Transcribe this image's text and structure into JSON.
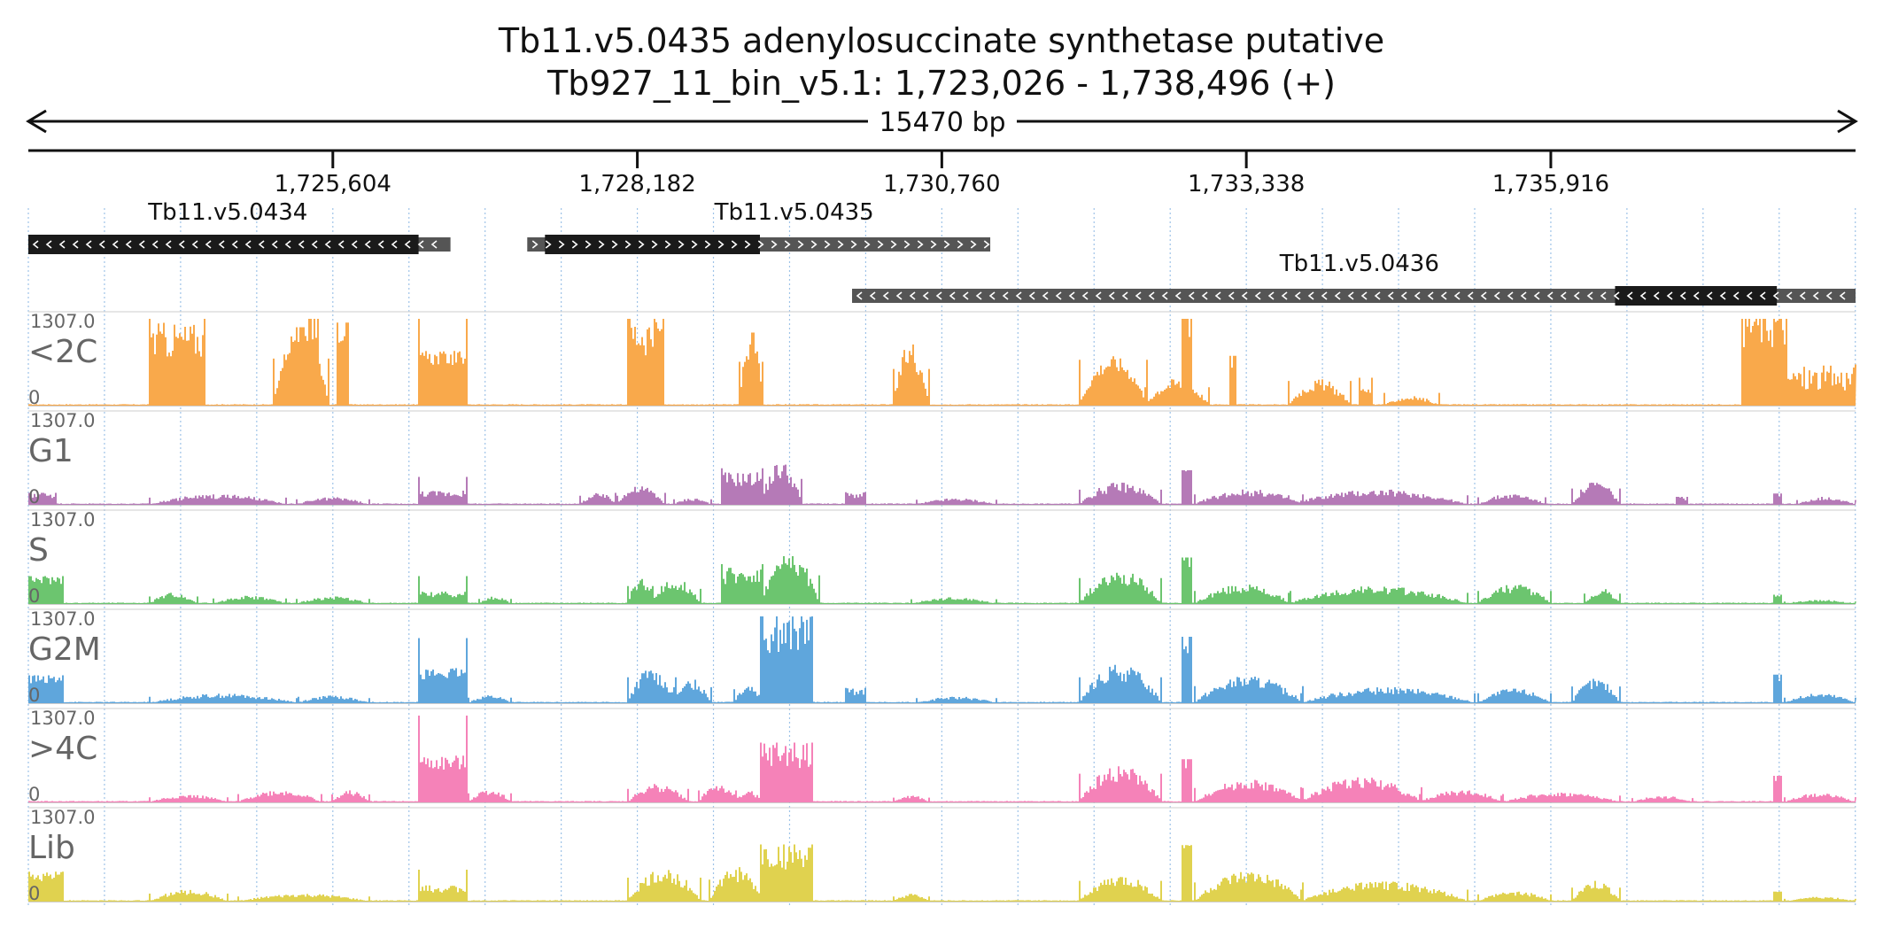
{
  "title": "Tb11.v5.0435  adenylosuccinate synthetase  putative",
  "subtitle": "Tb927_11_bin_v5.1: 1,723,026 - 1,738,496 (+)",
  "region": {
    "chrom": "Tb927_11_bin_v5.1",
    "start": 1723026,
    "end": 1738496,
    "strand": "+"
  },
  "span_label": "15470 bp",
  "colors": {
    "gene_cds": "#1a1a1a",
    "gene_utr": "#555555",
    "gridline": "#9ec3e8",
    "axis": "#111111"
  },
  "chart_data": {
    "type": "area",
    "x_ticks": [
      1725604,
      1728182,
      1730760,
      1733338,
      1735916
    ],
    "x_tick_labels": [
      "1,725,604",
      "1,728,182",
      "1,730,760",
      "1,733,338",
      "1,735,916"
    ],
    "genes": [
      {
        "name": "Tb11.v5.0434",
        "strand": "-",
        "start": 1723026,
        "end": 1726600,
        "cds_start": 1723026,
        "cds_end": 1726330
      },
      {
        "name": "Tb11.v5.0435",
        "strand": "+",
        "start": 1727250,
        "end": 1731170,
        "cds_start": 1727400,
        "cds_end": 1729220
      },
      {
        "name": "Tb11.v5.0436",
        "strand": "-",
        "start": 1730000,
        "end": 1738496,
        "cds_start": 1736460,
        "cds_end": 1737830
      }
    ],
    "ylim": [
      0,
      1307.0
    ],
    "y_max_label": "1307.0",
    "y_min_label": "0",
    "series": [
      {
        "name": "<2C",
        "color": "#f9a94b",
        "max": 1307.0,
        "peaks": [
          [
            1724050,
            1724500,
            1307,
            0.28,
            0.75,
            "flat"
          ],
          [
            1724300,
            1724400,
            850,
            0.3,
            0.6,
            "hill"
          ],
          [
            1725100,
            1725560,
            1180,
            0.15,
            0.92,
            "hill"
          ],
          [
            1725400,
            1725470,
            1307,
            0.3,
            1.0,
            "flat"
          ],
          [
            1725650,
            1725720,
            1250,
            0.3,
            1.0,
            "flat"
          ],
          [
            1726340,
            1726720,
            1307,
            0.15,
            0.55,
            "flat"
          ],
          [
            1728100,
            1728390,
            1307,
            0.3,
            0.82,
            "flat"
          ],
          [
            1729050,
            1729220,
            1100,
            0.3,
            0.9,
            "hill"
          ],
          [
            1730350,
            1730640,
            920,
            0.3,
            0.85,
            "hill"
          ],
          [
            1731920,
            1732480,
            1150,
            0.2,
            0.55,
            "hill"
          ],
          [
            1732800,
            1732860,
            1307,
            0.3,
            1.0,
            "flat"
          ],
          [
            1732480,
            1733000,
            460,
            0.3,
            0.7,
            "hill"
          ],
          [
            1733200,
            1733230,
            750,
            0.3,
            1.0,
            "flat"
          ],
          [
            1733700,
            1734200,
            620,
            0.3,
            0.5,
            "hill"
          ],
          [
            1734300,
            1734380,
            420,
            0.3,
            0.5,
            "flat"
          ],
          [
            1734500,
            1734960,
            320,
            0.3,
            0.35,
            "hill"
          ],
          [
            1737530,
            1737900,
            1307,
            0.3,
            0.95,
            "flat"
          ],
          [
            1737900,
            1738496,
            620,
            0.5,
            0.65,
            "flat"
          ]
        ]
      },
      {
        "name": "G1",
        "color": "#b57ab7",
        "max": 1307.0,
        "peaks": [
          [
            1723026,
            1723250,
            180,
            0.3,
            0.8,
            "flat"
          ],
          [
            1724050,
            1725200,
            180,
            0.3,
            0.7,
            "hill"
          ],
          [
            1725300,
            1725900,
            140,
            0.3,
            0.65,
            "hill"
          ],
          [
            1726340,
            1726720,
            420,
            0.3,
            0.4,
            "flat"
          ],
          [
            1727700,
            1728000,
            230,
            0.3,
            0.6,
            "hill"
          ],
          [
            1728000,
            1728400,
            300,
            0.3,
            0.75,
            "hill"
          ],
          [
            1728500,
            1728800,
            140,
            0.3,
            0.6,
            "hill"
          ],
          [
            1728900,
            1729220,
            550,
            0.3,
            0.7,
            "flat"
          ],
          [
            1729220,
            1729550,
            650,
            0.3,
            0.8,
            "hill"
          ],
          [
            1729950,
            1730100,
            190,
            0.3,
            0.75,
            "flat"
          ],
          [
            1730550,
            1731200,
            130,
            0.3,
            0.6,
            "hill"
          ],
          [
            1731920,
            1732600,
            380,
            0.3,
            0.7,
            "hill"
          ],
          [
            1732800,
            1732860,
            520,
            0.3,
            1.0,
            "flat"
          ],
          [
            1732900,
            1733800,
            260,
            0.3,
            0.7,
            "hill"
          ],
          [
            1733700,
            1735200,
            240,
            0.3,
            0.75,
            "hill"
          ],
          [
            1735300,
            1735850,
            190,
            0.3,
            0.7,
            "hill"
          ],
          [
            1736100,
            1736480,
            410,
            0.3,
            0.7,
            "hill"
          ],
          [
            1736980,
            1737060,
            120,
            0.3,
            0.8,
            "flat"
          ],
          [
            1737800,
            1737850,
            170,
            0.3,
            1.0,
            "flat"
          ],
          [
            1738000,
            1738496,
            120,
            0.3,
            0.8,
            "hill"
          ]
        ]
      },
      {
        "name": "S",
        "color": "#6cc56f",
        "max": 1307.0,
        "peaks": [
          [
            1723026,
            1723300,
            420,
            0.2,
            0.85,
            "flat"
          ],
          [
            1724050,
            1724450,
            190,
            0.3,
            0.7,
            "hill"
          ],
          [
            1724600,
            1725200,
            140,
            0.3,
            0.7,
            "hill"
          ],
          [
            1725300,
            1725900,
            130,
            0.3,
            0.7,
            "hill"
          ],
          [
            1726340,
            1726720,
            420,
            0.3,
            0.35,
            "flat"
          ],
          [
            1726850,
            1727100,
            130,
            0.3,
            0.7,
            "hill"
          ],
          [
            1728100,
            1728300,
            450,
            0.3,
            0.7,
            "hill"
          ],
          [
            1728300,
            1728700,
            380,
            0.3,
            0.8,
            "hill"
          ],
          [
            1728900,
            1729220,
            600,
            0.3,
            0.7,
            "flat"
          ],
          [
            1729220,
            1729700,
            720,
            0.3,
            0.85,
            "hill"
          ],
          [
            1730500,
            1731200,
            120,
            0.3,
            0.65,
            "hill"
          ],
          [
            1731920,
            1732600,
            650,
            0.3,
            0.6,
            "hill"
          ],
          [
            1732800,
            1732860,
            700,
            0.3,
            1.0,
            "flat"
          ],
          [
            1732900,
            1733700,
            330,
            0.3,
            0.7,
            "hill"
          ],
          [
            1733700,
            1735200,
            280,
            0.3,
            0.75,
            "hill"
          ],
          [
            1735300,
            1735900,
            330,
            0.3,
            0.7,
            "hill"
          ],
          [
            1736200,
            1736480,
            260,
            0.3,
            0.7,
            "hill"
          ],
          [
            1737800,
            1737850,
            140,
            0.3,
            1.0,
            "flat"
          ],
          [
            1737900,
            1738496,
            60,
            0.3,
            0.85,
            "hill"
          ]
        ]
      },
      {
        "name": "G2M",
        "color": "#5fa6dc",
        "max": 1307.0,
        "peaks": [
          [
            1723026,
            1723300,
            420,
            0.2,
            0.85,
            "flat"
          ],
          [
            1724050,
            1725300,
            160,
            0.3,
            0.7,
            "hill"
          ],
          [
            1725300,
            1725900,
            130,
            0.3,
            0.7,
            "hill"
          ],
          [
            1726340,
            1726720,
            980,
            0.2,
            0.45,
            "flat"
          ],
          [
            1726750,
            1727100,
            140,
            0.3,
            0.7,
            "hill"
          ],
          [
            1728100,
            1728500,
            650,
            0.3,
            0.65,
            "hill"
          ],
          [
            1728500,
            1728800,
            400,
            0.3,
            0.7,
            "hill"
          ],
          [
            1729000,
            1729220,
            350,
            0.3,
            0.7,
            "hill"
          ],
          [
            1729220,
            1729650,
            1307,
            0.3,
            0.8,
            "flat"
          ],
          [
            1729950,
            1730100,
            230,
            0.3,
            0.75,
            "flat"
          ],
          [
            1730550,
            1731200,
            130,
            0.3,
            0.6,
            "hill"
          ],
          [
            1731920,
            1732600,
            650,
            0.3,
            0.7,
            "hill"
          ],
          [
            1732800,
            1732860,
            1000,
            0.3,
            1.0,
            "flat"
          ],
          [
            1732900,
            1733800,
            430,
            0.3,
            0.75,
            "hill"
          ],
          [
            1733800,
            1735250,
            250,
            0.3,
            0.75,
            "hill"
          ],
          [
            1735300,
            1735900,
            250,
            0.3,
            0.7,
            "hill"
          ],
          [
            1736100,
            1736480,
            420,
            0.3,
            0.7,
            "hill"
          ],
          [
            1737800,
            1737850,
            430,
            0.3,
            1.0,
            "flat"
          ],
          [
            1737900,
            1738496,
            140,
            0.3,
            0.85,
            "hill"
          ]
        ]
      },
      {
        "name": ">4C",
        "color": "#f582b8",
        "max": 1307.0,
        "peaks": [
          [
            1724050,
            1724700,
            130,
            0.3,
            0.7,
            "hill"
          ],
          [
            1724800,
            1725500,
            210,
            0.3,
            0.7,
            "hill"
          ],
          [
            1725600,
            1725900,
            200,
            0.3,
            0.7,
            "hill"
          ],
          [
            1726340,
            1726720,
            1307,
            0.2,
            0.45,
            "flat"
          ],
          [
            1726750,
            1727100,
            230,
            0.3,
            0.7,
            "hill"
          ],
          [
            1728100,
            1728600,
            340,
            0.3,
            0.65,
            "hill"
          ],
          [
            1728700,
            1729000,
            300,
            0.3,
            0.75,
            "hill"
          ],
          [
            1729000,
            1729220,
            200,
            0.3,
            0.7,
            "hill"
          ],
          [
            1729220,
            1729650,
            900,
            0.3,
            0.8,
            "flat"
          ],
          [
            1730350,
            1730640,
            120,
            0.3,
            0.7,
            "hill"
          ],
          [
            1731920,
            1732600,
            720,
            0.3,
            0.6,
            "hill"
          ],
          [
            1732800,
            1732860,
            650,
            0.3,
            1.0,
            "flat"
          ],
          [
            1732900,
            1733800,
            360,
            0.3,
            0.75,
            "hill"
          ],
          [
            1733800,
            1734800,
            380,
            0.3,
            0.8,
            "hill"
          ],
          [
            1734800,
            1735500,
            210,
            0.3,
            0.7,
            "hill"
          ],
          [
            1735500,
            1736480,
            170,
            0.3,
            0.7,
            "hill"
          ],
          [
            1736600,
            1737100,
            110,
            0.3,
            0.7,
            "hill"
          ],
          [
            1737800,
            1737850,
            400,
            0.3,
            1.0,
            "flat"
          ],
          [
            1737900,
            1738496,
            130,
            0.3,
            0.85,
            "hill"
          ]
        ]
      },
      {
        "name": "Lib",
        "color": "#e0d24f",
        "max": 1307.0,
        "peaks": [
          [
            1723026,
            1723300,
            450,
            0.2,
            0.85,
            "flat"
          ],
          [
            1724050,
            1724700,
            200,
            0.3,
            0.7,
            "hill"
          ],
          [
            1724800,
            1725900,
            130,
            0.3,
            0.7,
            "hill"
          ],
          [
            1726340,
            1726720,
            480,
            0.3,
            0.4,
            "flat"
          ],
          [
            1728100,
            1728700,
            600,
            0.3,
            0.65,
            "hill"
          ],
          [
            1728800,
            1729220,
            550,
            0.3,
            0.75,
            "hill"
          ],
          [
            1729220,
            1729650,
            860,
            0.3,
            0.8,
            "flat"
          ],
          [
            1730350,
            1730640,
            130,
            0.3,
            0.7,
            "hill"
          ],
          [
            1731920,
            1732600,
            520,
            0.3,
            0.6,
            "hill"
          ],
          [
            1732800,
            1732860,
            850,
            0.3,
            1.0,
            "flat"
          ],
          [
            1732900,
            1733800,
            480,
            0.3,
            0.75,
            "hill"
          ],
          [
            1733800,
            1735200,
            300,
            0.3,
            0.8,
            "hill"
          ],
          [
            1735300,
            1735900,
            180,
            0.3,
            0.7,
            "hill"
          ],
          [
            1736100,
            1736480,
            350,
            0.3,
            0.7,
            "hill"
          ],
          [
            1737800,
            1737850,
            150,
            0.3,
            1.0,
            "flat"
          ],
          [
            1737900,
            1738496,
            70,
            0.3,
            0.85,
            "hill"
          ]
        ]
      }
    ]
  }
}
